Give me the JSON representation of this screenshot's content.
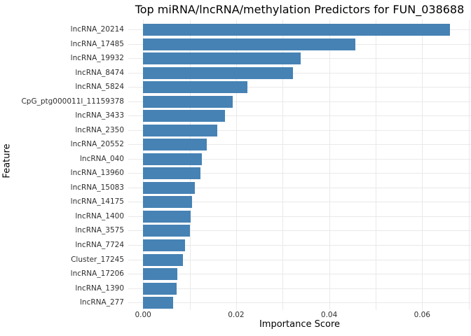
{
  "chart_data": {
    "type": "bar",
    "orientation": "horizontal",
    "title": "Top miRNA/lncRNA/methylation Predictors for FUN_038688",
    "xlabel": "Importance Score",
    "ylabel": "Feature",
    "categories": [
      "lncRNA_20214",
      "lncRNA_17485",
      "lncRNA_19932",
      "lncRNA_8474",
      "lncRNA_5824",
      "CpG_ptg000011l_11159378",
      "lncRNA_3433",
      "lncRNA_2350",
      "lncRNA_20552",
      "lncRNA_040",
      "lncRNA_13960",
      "lncRNA_15083",
      "lncRNA_14175",
      "lncRNA_1400",
      "lncRNA_3575",
      "lncRNA_7724",
      "Cluster_17245",
      "lncRNA_17206",
      "lncRNA_1390",
      "lncRNA_277"
    ],
    "values": [
      0.066,
      0.0456,
      0.0339,
      0.0322,
      0.0224,
      0.0192,
      0.0176,
      0.0159,
      0.0137,
      0.0127,
      0.0124,
      0.0112,
      0.0105,
      0.0103,
      0.0101,
      0.009,
      0.0086,
      0.0074,
      0.0072,
      0.0065
    ],
    "xlim": [
      -0.0032,
      0.0705
    ],
    "x_ticks": [
      {
        "label": "0.00",
        "value": 0.0
      },
      {
        "label": "0.02",
        "value": 0.02
      },
      {
        "label": "0.04",
        "value": 0.04
      },
      {
        "label": "0.06",
        "value": 0.06
      }
    ],
    "grid_x_values": [
      0.0,
      0.01,
      0.02,
      0.03,
      0.04,
      0.05,
      0.06,
      0.07
    ],
    "grid": true,
    "legend": false,
    "bar_color": "#4682B4",
    "grid_color": "#e9e9e9",
    "background_color": "#ffffff",
    "tick_text_color": "#303030"
  }
}
